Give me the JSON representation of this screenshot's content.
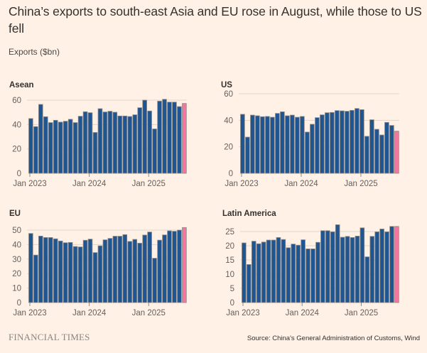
{
  "header": {
    "title": "China’s exports to south-east Asia and EU rose in August, while those to US fell",
    "subtitle": "Exports ($bn)"
  },
  "footer": {
    "brand": "FINANCIAL TIMES",
    "source": "Source: China's General Administration of Customs, Wind"
  },
  "colors": {
    "background": "#fff1e5",
    "bar": "#1f5591",
    "highlight": "#f2769f"
  },
  "chart_data": [
    {
      "type": "bar",
      "title": "Asean",
      "xlabel": "",
      "ylabel": "Exports ($bn)",
      "x_range": [
        "Jan 2023",
        "Aug 2025"
      ],
      "x_tick_labels": [
        "Jan 2023",
        "Jan 2024",
        "Jan 2025"
      ],
      "y_ticks": [
        0,
        20,
        40,
        60
      ],
      "ylim": [
        0,
        60
      ],
      "grid": true,
      "highlight": "last bar (Aug 2025) in pink",
      "values": [
        44.9,
        38.3,
        56.5,
        46.4,
        41.6,
        43.5,
        42.0,
        42.7,
        44.3,
        41.6,
        46.8,
        50.5,
        49.7,
        33.5,
        53.0,
        50.3,
        50.9,
        50.1,
        47.0,
        47.0,
        46.6,
        48.0,
        53.8,
        60.0,
        51.1,
        36.4,
        59.2,
        60.7,
        58.4,
        58.4,
        54.7,
        57.3
      ]
    },
    {
      "type": "bar",
      "title": "US",
      "xlabel": "",
      "ylabel": "Exports ($bn)",
      "x_range": [
        "Jan 2023",
        "Aug 2025"
      ],
      "x_tick_labels": [
        "Jan 2023",
        "Jan 2024",
        "Jan 2025"
      ],
      "y_ticks": [
        0,
        20,
        40,
        60
      ],
      "ylim": [
        0,
        60
      ],
      "grid": true,
      "highlight": "last bar (Aug 2025) in pink",
      "values": [
        44.5,
        27.3,
        43.9,
        43.4,
        42.7,
        42.9,
        42.3,
        45.2,
        46.4,
        43.4,
        43.9,
        42.3,
        42.9,
        31.1,
        37.0,
        42.0,
        44.1,
        45.7,
        45.9,
        47.3,
        47.1,
        46.8,
        47.5,
        48.9,
        48.0,
        27.9,
        40.4,
        33.2,
        28.9,
        38.4,
        36.1,
        31.8
      ]
    },
    {
      "type": "bar",
      "title": "EU",
      "xlabel": "",
      "ylabel": "Exports ($bn)",
      "x_range": [
        "Jan 2023",
        "Aug 2025"
      ],
      "x_tick_labels": [
        "Jan 2023",
        "Jan 2024",
        "Jan 2025"
      ],
      "y_ticks": [
        0,
        10,
        20,
        30,
        40,
        50
      ],
      "ylim": [
        0,
        50
      ],
      "grid": true,
      "highlight": "last bar (Aug 2025) in pink",
      "values": [
        47.7,
        32.8,
        45.9,
        44.9,
        44.9,
        44.0,
        42.5,
        41.3,
        41.5,
        38.7,
        38.4,
        43.0,
        43.8,
        34.5,
        39.2,
        43.3,
        44.3,
        45.8,
        45.8,
        46.9,
        42.2,
        43.6,
        41.0,
        46.6,
        48.7,
        30.6,
        43.1,
        46.7,
        49.5,
        49.2,
        50.0,
        51.8
      ]
    },
    {
      "type": "bar",
      "title": "Latin America",
      "xlabel": "",
      "ylabel": "Exports ($bn)",
      "x_range": [
        "Jan 2023",
        "Aug 2025"
      ],
      "x_tick_labels": [
        "Jan 2023",
        "Jan 2024",
        "Jan 2025"
      ],
      "y_ticks": [
        0,
        5,
        10,
        15,
        20,
        25
      ],
      "ylim": [
        0,
        25
      ],
      "grid": true,
      "highlight": "last bar (Aug 2025) in pink",
      "values": [
        21.0,
        13.4,
        21.6,
        20.7,
        21.3,
        22.0,
        22.0,
        22.9,
        22.2,
        19.3,
        20.6,
        20.2,
        22.1,
        18.9,
        18.9,
        21.2,
        25.3,
        25.3,
        24.9,
        27.4,
        23.0,
        23.3,
        22.9,
        23.4,
        26.3,
        16.1,
        23.3,
        24.9,
        25.9,
        24.9,
        26.8,
        26.8
      ]
    }
  ]
}
